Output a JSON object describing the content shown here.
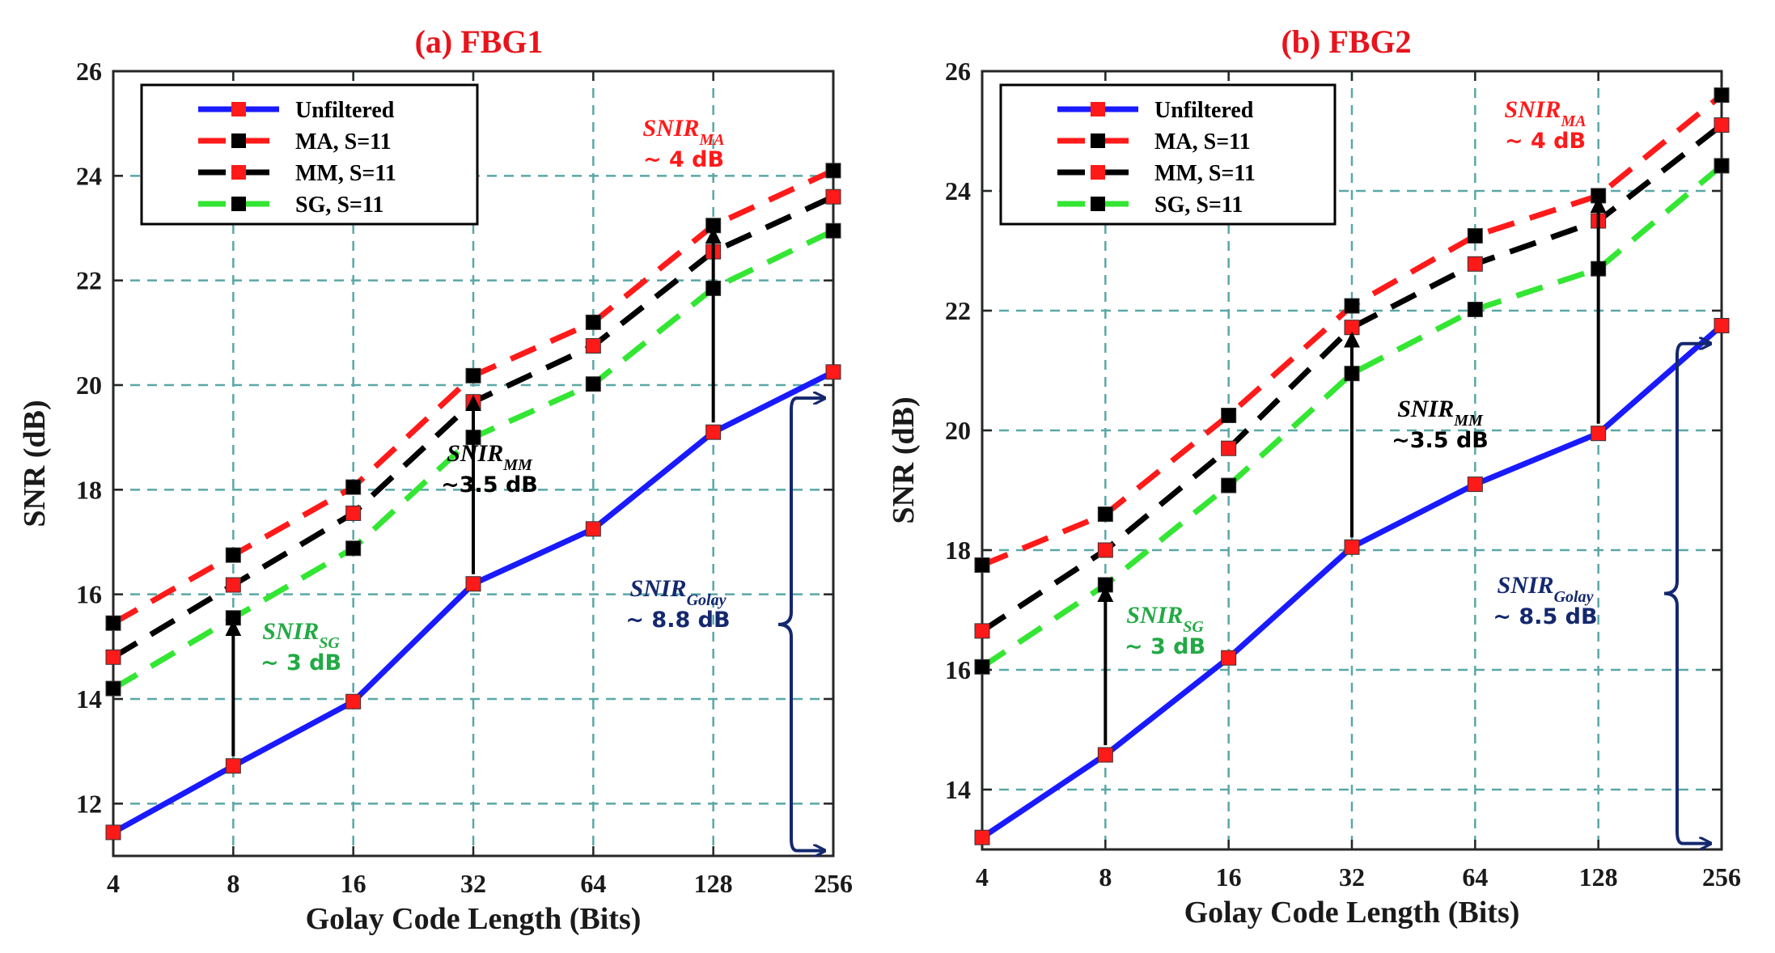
{
  "chart_data": [
    {
      "type": "line",
      "title": "(a) FBG1",
      "xlabel": "Golay Code Length (Bits)",
      "ylabel": "SNR (dB)",
      "categories": [
        "4",
        "8",
        "16",
        "32",
        "64",
        "128",
        "256"
      ],
      "ylim": [
        11,
        26
      ],
      "yticks": [
        "12",
        "14",
        "16",
        "18",
        "20",
        "22",
        "24",
        "26"
      ],
      "grid": true,
      "legend_position": "top-left",
      "series": [
        {
          "name": "Unfiltered",
          "style": "solid",
          "color": "#1a1aff",
          "marker_color": "#ff1a1a",
          "values": [
            11.45,
            12.72,
            13.95,
            16.2,
            17.25,
            19.1,
            20.25
          ]
        },
        {
          "name": "MA, S=11",
          "style": "dashed",
          "color": "#ff1a1a",
          "marker_color": "#000000",
          "values": [
            15.45,
            16.75,
            18.05,
            20.18,
            21.2,
            23.05,
            24.1
          ]
        },
        {
          "name": "MM, S=11",
          "style": "dashed",
          "color": "#000000",
          "marker_color": "#ff1a1a",
          "values": [
            14.8,
            16.18,
            17.55,
            19.68,
            20.75,
            22.55,
            23.6
          ]
        },
        {
          "name": "SG, S=11",
          "style": "dashed",
          "color": "#33e633",
          "marker_color": "#000000",
          "values": [
            14.2,
            15.55,
            16.88,
            19.0,
            20.02,
            21.85,
            22.95
          ]
        }
      ],
      "annotations": [
        {
          "id": "ma",
          "name": "SNIR",
          "sub": "MA",
          "value": "~ 4 dB",
          "color": "#ff1a1a"
        },
        {
          "id": "mm",
          "name": "SNIR",
          "sub": "MM",
          "value": "~3.5 dB",
          "color": "#000000"
        },
        {
          "id": "sg",
          "name": "SNIR",
          "sub": "SG",
          "value": "~ 3 dB",
          "color": "#22aa44"
        },
        {
          "id": "golay",
          "name": "SNIR",
          "sub": "Golay",
          "value": "~ 8.8 dB",
          "color": "#14286e"
        }
      ]
    },
    {
      "type": "line",
      "title": "(b) FBG2",
      "xlabel": "Golay Code Length (Bits)",
      "ylabel": "SNR (dB)",
      "categories": [
        "4",
        "8",
        "16",
        "32",
        "64",
        "128",
        "256"
      ],
      "ylim": [
        13,
        26
      ],
      "yticks": [
        "14",
        "16",
        "18",
        "20",
        "22",
        "24",
        "26"
      ],
      "grid": true,
      "legend_position": "top-left",
      "series": [
        {
          "name": "Unfiltered",
          "style": "solid",
          "color": "#1a1aff",
          "marker_color": "#ff1a1a",
          "values": [
            13.2,
            14.58,
            16.2,
            18.05,
            19.1,
            19.95,
            21.75
          ]
        },
        {
          "name": "MA, S=11",
          "style": "dashed",
          "color": "#ff1a1a",
          "marker_color": "#000000",
          "values": [
            17.75,
            18.6,
            20.25,
            22.08,
            23.25,
            23.92,
            25.6
          ]
        },
        {
          "name": "MM, S=11",
          "style": "dashed",
          "color": "#000000",
          "marker_color": "#ff1a1a",
          "values": [
            16.65,
            18.0,
            19.7,
            21.72,
            22.78,
            23.5,
            25.1
          ]
        },
        {
          "name": "SG, S=11",
          "style": "dashed",
          "color": "#33e633",
          "marker_color": "#000000",
          "values": [
            16.05,
            17.42,
            19.08,
            20.95,
            22.02,
            22.7,
            24.42
          ]
        }
      ],
      "annotations": [
        {
          "id": "ma",
          "name": "SNIR",
          "sub": "MA",
          "value": "~ 4 dB",
          "color": "#ff1a1a"
        },
        {
          "id": "mm",
          "name": "SNIR",
          "sub": "MM",
          "value": "~3.5 dB",
          "color": "#000000"
        },
        {
          "id": "sg",
          "name": "SNIR",
          "sub": "SG",
          "value": "~ 3 dB",
          "color": "#22aa44"
        },
        {
          "id": "golay",
          "name": "SNIR",
          "sub": "Golay",
          "value": "~ 8.5 dB",
          "color": "#14286e"
        }
      ]
    }
  ]
}
